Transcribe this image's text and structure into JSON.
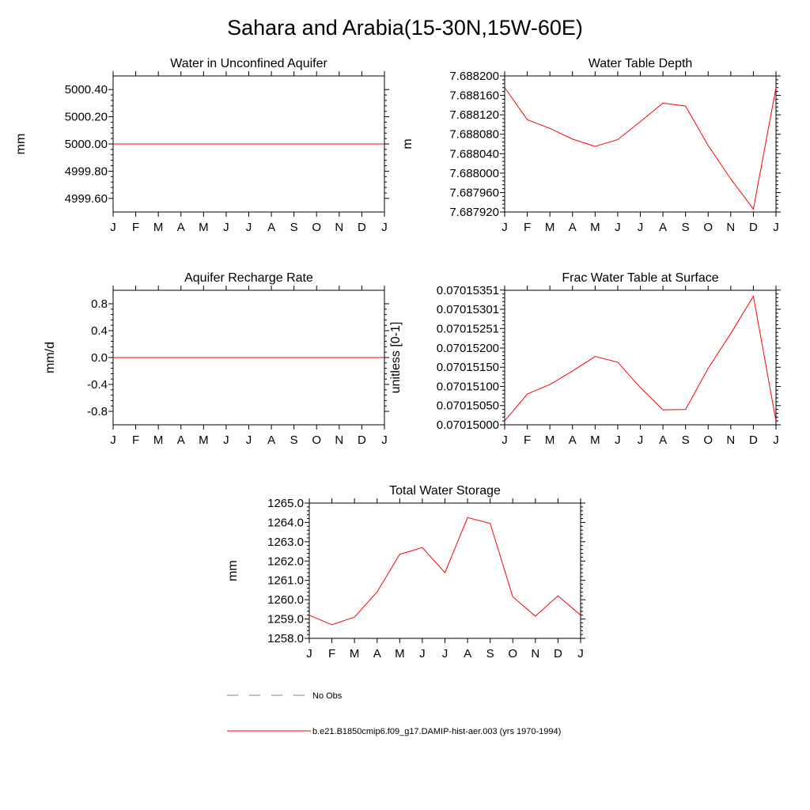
{
  "page": {
    "title": "Sahara and Arabia(15-30N,15W-60E)"
  },
  "months": [
    "J",
    "F",
    "M",
    "A",
    "M",
    "J",
    "J",
    "A",
    "S",
    "O",
    "N",
    "D",
    "J"
  ],
  "colors": {
    "model": "#ff0000",
    "obs": "#808080",
    "axis": "#000000"
  },
  "chart_data": [
    {
      "type": "line",
      "title": "Water in Unconfined Aquifer",
      "ylabel": "mm",
      "ylim": [
        4999.5,
        5000.5
      ],
      "yticks": [
        4999.6,
        4999.8,
        5000.0,
        5000.2,
        5000.4
      ],
      "yticklabels": [
        "4999.60",
        "4999.80",
        "5000.00",
        "5000.20",
        "5000.40"
      ],
      "categories": [
        "J",
        "F",
        "M",
        "A",
        "M",
        "J",
        "J",
        "A",
        "S",
        "O",
        "N",
        "D",
        "J"
      ],
      "series": [
        {
          "values": [
            5000,
            5000,
            5000,
            5000,
            5000,
            5000,
            5000,
            5000,
            5000,
            5000,
            5000,
            5000,
            5000
          ]
        }
      ]
    },
    {
      "type": "line",
      "title": "Water Table Depth",
      "ylabel": "m",
      "ylim": [
        7.68792,
        7.6882
      ],
      "yticks": [
        7.68792,
        7.68796,
        7.688,
        7.68804,
        7.68808,
        7.68812,
        7.68816,
        7.6882
      ],
      "yticklabels": [
        "7.687920",
        "7.687960",
        "7.688000",
        "7.688040",
        "7.688080",
        "7.688120",
        "7.688160",
        "7.688200"
      ],
      "categories": [
        "J",
        "F",
        "M",
        "A",
        "M",
        "J",
        "J",
        "A",
        "S",
        "O",
        "N",
        "D",
        "J"
      ],
      "series": [
        {
          "values": [
            7.688176,
            7.68811,
            7.688092,
            7.68807,
            7.688055,
            7.688069,
            7.688106,
            7.688144,
            7.688138,
            7.688057,
            7.687988,
            7.687926,
            7.688176
          ]
        }
      ]
    },
    {
      "type": "line",
      "title": "Aquifer Recharge Rate",
      "ylabel": "mm/d",
      "ylim": [
        -1.0,
        1.0
      ],
      "yticks": [
        -0.8,
        -0.4,
        0.0,
        0.4,
        0.8
      ],
      "yticklabels": [
        "-0.8",
        "-0.4",
        "0.0",
        "0.4",
        "0.8"
      ],
      "categories": [
        "J",
        "F",
        "M",
        "A",
        "M",
        "J",
        "J",
        "A",
        "S",
        "O",
        "N",
        "D",
        "J"
      ],
      "series": [
        {
          "values": [
            0,
            0,
            0,
            0,
            0,
            0,
            0,
            0,
            0,
            0,
            0,
            0,
            0
          ]
        }
      ]
    },
    {
      "type": "line",
      "title": "Frac Water Table at Surface",
      "ylabel": "unitless [0-1]",
      "ylim": [
        0.07015,
        0.070153505
      ],
      "yticks": [
        0.07015,
        0.0701505,
        0.070151,
        0.0701515,
        0.070152,
        0.07015251,
        0.07015301,
        0.07015351
      ],
      "yticklabels": [
        "0.07015000",
        "0.07015050",
        "0.07015100",
        "0.07015150",
        "0.07015200",
        "0.07015251",
        "0.07015301",
        "0.07015351"
      ],
      "categories": [
        "J",
        "F",
        "M",
        "A",
        "M",
        "J",
        "J",
        "A",
        "S",
        "O",
        "N",
        "D",
        "J"
      ],
      "series": [
        {
          "values": [
            0.0701501,
            0.0701508,
            0.07015105,
            0.0701514,
            0.07015178,
            0.07015163,
            0.07015097,
            0.07015039,
            0.0701504,
            0.07015147,
            0.07015238,
            0.07015335,
            0.0701501
          ]
        }
      ]
    },
    {
      "type": "line",
      "title": "Total Water Storage",
      "ylabel": "mm",
      "ylim": [
        1258.0,
        1265.0
      ],
      "yticks": [
        1258,
        1259,
        1260,
        1261,
        1262,
        1263,
        1264,
        1265
      ],
      "yticklabels": [
        "1258.0",
        "1259.0",
        "1260.0",
        "1261.0",
        "1262.0",
        "1263.0",
        "1264.0",
        "1265.0"
      ],
      "categories": [
        "J",
        "F",
        "M",
        "A",
        "M",
        "J",
        "J",
        "A",
        "S",
        "O",
        "N",
        "D",
        "J"
      ],
      "series": [
        {
          "values": [
            1259.2,
            1258.7,
            1259.1,
            1260.4,
            1262.35,
            1262.7,
            1261.4,
            1264.25,
            1263.95,
            1260.15,
            1259.15,
            1260.2,
            1259.2
          ]
        }
      ]
    }
  ],
  "legend": {
    "items": [
      {
        "label": "No Obs",
        "style": "dashed",
        "color": "#808080"
      },
      {
        "label": "b.e21.B1850cmip6.f09_g17.DAMIP-hist-aer.003 (yrs 1970-1994)",
        "style": "solid",
        "color": "#ff0000"
      }
    ]
  }
}
